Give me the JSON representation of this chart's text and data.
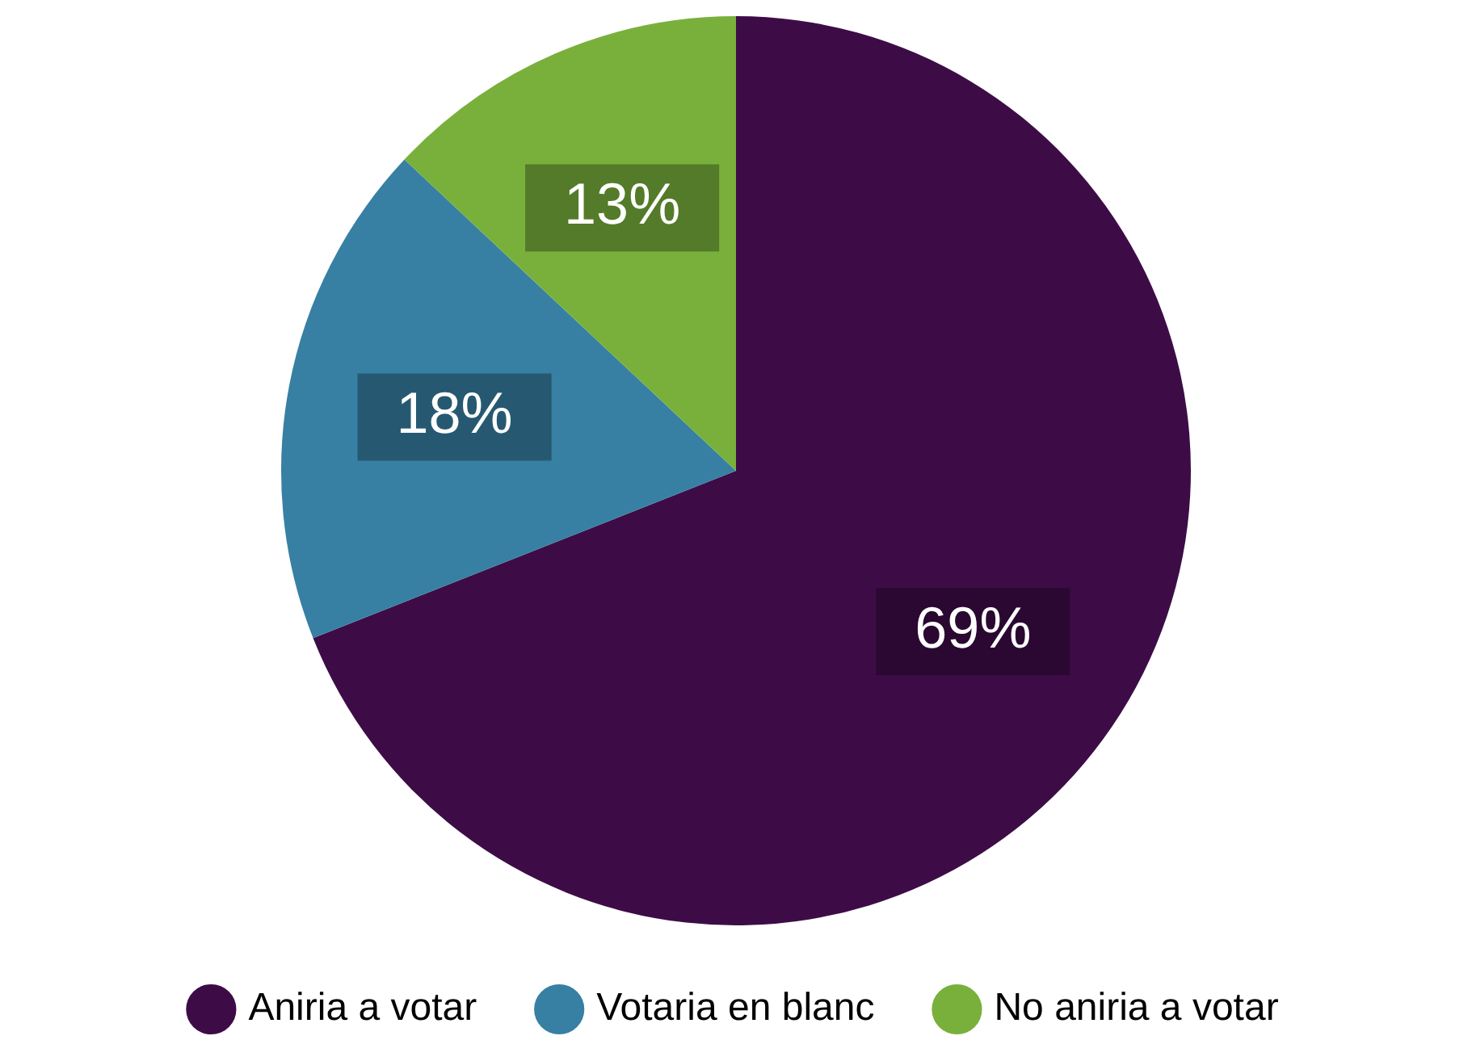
{
  "chart_data": {
    "type": "pie",
    "categories": [
      "Aniria a votar",
      "Votaria en blanc",
      "No aniria a votar"
    ],
    "values": [
      69,
      18,
      13
    ],
    "colors": [
      "#3d0c47",
      "#3780a3",
      "#79b03c"
    ],
    "value_labels": [
      "69%",
      "18%",
      "13%"
    ],
    "legend": "bottom"
  }
}
